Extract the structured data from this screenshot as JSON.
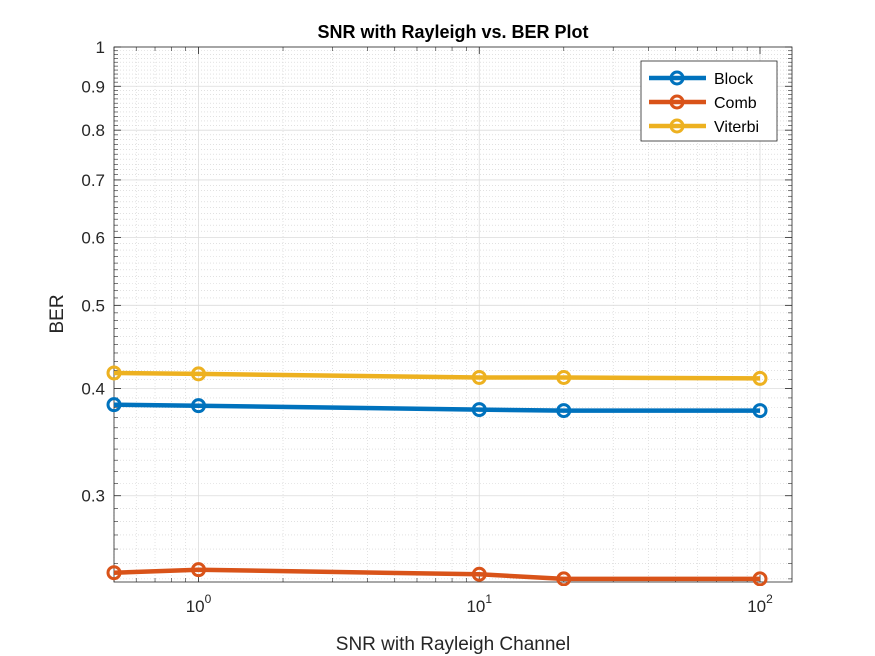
{
  "chart_data": {
    "type": "line",
    "title": "SNR with Rayleigh vs. BER Plot",
    "xlabel": "SNR with Rayleigh Channel",
    "ylabel": "BER",
    "x_scale": "log",
    "y_scale": "log",
    "xlim": [
      0.5,
      130
    ],
    "ylim": [
      0.238,
      1
    ],
    "x_ticks": [
      {
        "value": 1,
        "base": "10",
        "exp": "0"
      },
      {
        "value": 10,
        "base": "10",
        "exp": "1"
      },
      {
        "value": 100,
        "base": "10",
        "exp": "2"
      }
    ],
    "y_ticks": [
      {
        "value": 0.3,
        "label": "0.3"
      },
      {
        "value": 0.4,
        "label": "0.4"
      },
      {
        "value": 0.5,
        "label": "0.5"
      },
      {
        "value": 0.6,
        "label": "0.6"
      },
      {
        "value": 0.7,
        "label": "0.7"
      },
      {
        "value": 0.8,
        "label": "0.8"
      },
      {
        "value": 0.9,
        "label": "0.9"
      },
      {
        "value": 1,
        "label": "1"
      }
    ],
    "grid": true,
    "minor_grid": true,
    "legend_position": "top-right",
    "x": [
      0.5,
      1,
      10,
      20,
      100
    ],
    "series": [
      {
        "name": "Block",
        "color": "#0072BD",
        "values": [
          0.383,
          0.382,
          0.378,
          0.377,
          0.377
        ]
      },
      {
        "name": "Comb",
        "color": "#D95319",
        "values": [
          0.244,
          0.246,
          0.243,
          0.24,
          0.24
        ]
      },
      {
        "name": "Viterbi",
        "color": "#EDB120",
        "values": [
          0.417,
          0.416,
          0.412,
          0.412,
          0.411
        ]
      }
    ]
  }
}
